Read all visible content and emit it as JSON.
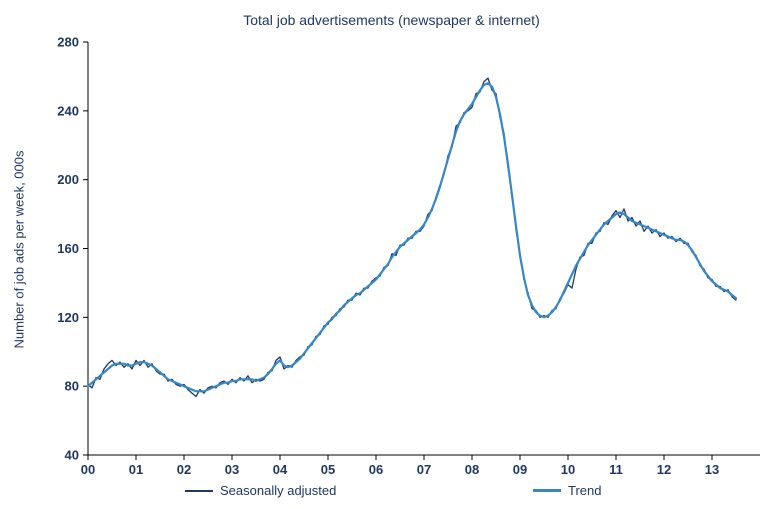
{
  "chart_data": {
    "type": "line",
    "title": "Total job advertisements (newspaper & internet)",
    "xlabel": "",
    "ylabel": "Number of job ads per week, 000s",
    "ylim": [
      40,
      280
    ],
    "yticks": [
      40,
      80,
      120,
      160,
      200,
      240,
      280
    ],
    "xlim": [
      2000,
      2014
    ],
    "xticks": [
      2000,
      2001,
      2002,
      2003,
      2004,
      2005,
      2006,
      2007,
      2008,
      2009,
      2010,
      2011,
      2012,
      2013
    ],
    "xtick_labels": [
      "00",
      "01",
      "02",
      "03",
      "04",
      "05",
      "06",
      "07",
      "08",
      "09",
      "10",
      "11",
      "12",
      "13"
    ],
    "x_start": 2000.0,
    "x_interval": "monthly",
    "grid": false,
    "legend_position": "bottom",
    "axis_color": "#000000",
    "text_color": "#1F3864",
    "series": [
      {
        "name": "Seasonally adjusted",
        "color": "#1F3864",
        "width": 1.3,
        "values": [
          81,
          79,
          85,
          84,
          90,
          93,
          95,
          92,
          94,
          91,
          93,
          90,
          95,
          92,
          95,
          91,
          93,
          89,
          87,
          87,
          83,
          84,
          81,
          80,
          81,
          78,
          76,
          74,
          78,
          76,
          79,
          80,
          79,
          82,
          83,
          81,
          84,
          82,
          85,
          83,
          86,
          82,
          84,
          83,
          84,
          88,
          89,
          95,
          97,
          90,
          92,
          91,
          95,
          97,
          98,
          103,
          104,
          109,
          110,
          115,
          116,
          120,
          121,
          125,
          126,
          130,
          130,
          134,
          133,
          137,
          137,
          141,
          143,
          144,
          149,
          150,
          157,
          156,
          162,
          162,
          166,
          166,
          170,
          170,
          173,
          180,
          182,
          190,
          197,
          203,
          214,
          219,
          231,
          233,
          239,
          240,
          242,
          250,
          251,
          257,
          259,
          252,
          250,
          236,
          227,
          207,
          192,
          171,
          157,
          142,
          134,
          125,
          124,
          120,
          121,
          120,
          124,
          125,
          131,
          134,
          139,
          137,
          148,
          155,
          156,
          163,
          163,
          169,
          170,
          175,
          174,
          179,
          182,
          178,
          183,
          176,
          178,
          173,
          176,
          170,
          173,
          169,
          171,
          167,
          169,
          166,
          167,
          164,
          166,
          163,
          163,
          158,
          156,
          150,
          148,
          143,
          142,
          138,
          138,
          135,
          136,
          132,
          130
        ]
      },
      {
        "name": "Trend",
        "color": "#3787C7",
        "width": 2.2,
        "values": [
          80,
          82,
          84,
          86,
          88,
          90,
          92,
          93,
          93,
          93,
          92,
          92,
          93,
          94,
          94,
          93,
          92,
          90,
          88,
          86,
          84,
          83,
          82,
          81,
          80,
          79,
          78,
          77,
          77,
          77,
          78,
          79,
          80,
          81,
          82,
          82,
          83,
          83,
          84,
          84,
          84,
          84,
          83,
          84,
          85,
          87,
          90,
          93,
          95,
          92,
          91,
          92,
          94,
          96,
          99,
          102,
          105,
          108,
          111,
          114,
          117,
          119,
          122,
          124,
          127,
          129,
          131,
          133,
          134,
          136,
          138,
          140,
          142,
          145,
          148,
          151,
          155,
          158,
          161,
          163,
          165,
          167,
          169,
          171,
          174,
          178,
          183,
          189,
          196,
          204,
          212,
          220,
          228,
          234,
          238,
          241,
          244,
          248,
          252,
          255,
          256,
          254,
          248,
          238,
          225,
          209,
          191,
          173,
          156,
          143,
          133,
          127,
          123,
          121,
          120,
          121,
          123,
          126,
          130,
          135,
          140,
          145,
          150,
          154,
          158,
          162,
          165,
          168,
          171,
          174,
          176,
          178,
          180,
          181,
          180,
          178,
          176,
          175,
          174,
          173,
          172,
          171,
          170,
          169,
          168,
          167,
          166,
          165,
          165,
          164,
          162,
          159,
          155,
          151,
          147,
          144,
          141,
          139,
          137,
          136,
          135,
          133,
          131
        ]
      }
    ]
  }
}
